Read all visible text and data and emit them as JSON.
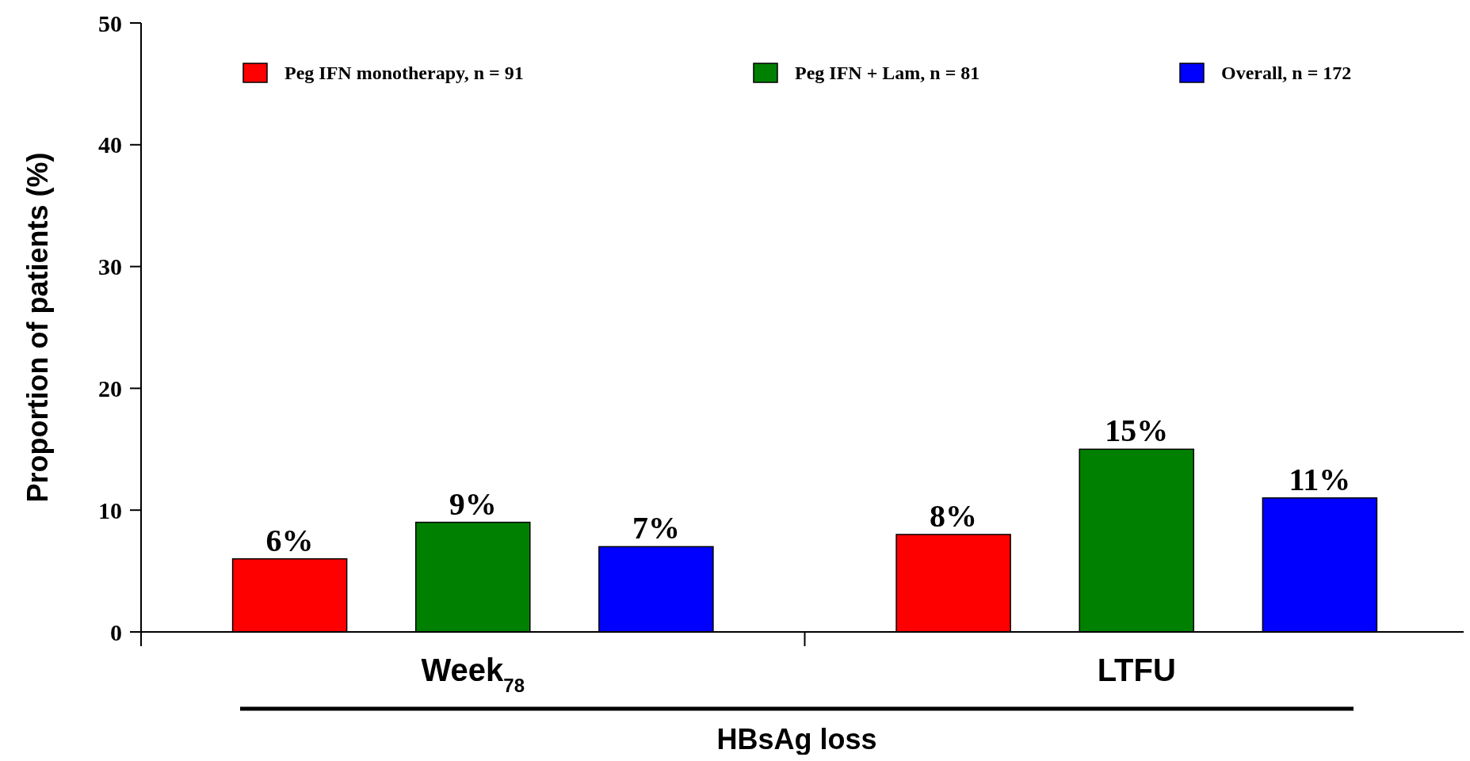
{
  "chart_data": {
    "type": "bar",
    "xlabel": "HBsAg loss",
    "ylabel": "Proportion of patients (%)",
    "categories": [
      "Week$_{78}$",
      "LTFU"
    ],
    "series": [
      {
        "name": "Peg IFN monotherapy, n = 91",
        "color": "#ff0000",
        "values": [
          6,
          8
        ],
        "value_labels": [
          "6%",
          "8%"
        ]
      },
      {
        "name": "Peg IFN + Lam, n = 81",
        "color": "#008000",
        "values": [
          9,
          15
        ],
        "value_labels": [
          "9%",
          "15%"
        ]
      },
      {
        "name": "Overall, n = 172",
        "color": "#0000ff",
        "values": [
          7,
          11
        ],
        "value_labels": [
          "7%",
          "11%"
        ]
      }
    ],
    "ylim": [
      0,
      50
    ],
    "yticks": [
      0,
      10,
      20,
      30,
      40,
      50
    ],
    "grid": false,
    "legend": "top"
  }
}
